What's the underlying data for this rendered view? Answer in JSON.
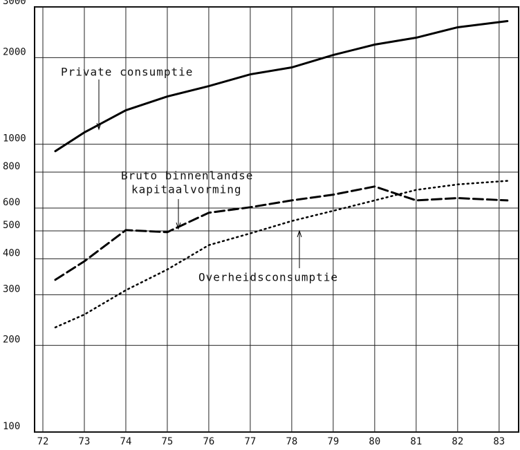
{
  "chart_data": {
    "type": "line",
    "x": [
      72.3,
      73,
      74,
      75,
      76,
      77,
      78,
      79,
      80,
      81,
      82,
      83.2
    ],
    "xlim": [
      71.8,
      83.47
    ],
    "xticks": [
      72,
      73,
      74,
      75,
      76,
      77,
      78,
      79,
      80,
      81,
      82,
      83
    ],
    "ylim": [
      100,
      3000
    ],
    "log_y": true,
    "yticks": [
      100,
      200,
      300,
      400,
      500,
      600,
      800,
      1000,
      2000,
      3000
    ],
    "grid": true,
    "series": [
      {
        "name": "Private consumptie",
        "color": "#000000",
        "style": "solid",
        "values": [
          946,
          1099,
          1312,
          1465,
          1592,
          1749,
          1849,
          2042,
          2219,
          2345,
          2549,
          2679
        ]
      },
      {
        "name": "Bruto binnenlandse kapitaalvorming",
        "color": "#000000",
        "style": "dashed",
        "values": [
          338,
          392,
          503,
          495,
          578,
          604,
          638,
          668,
          713,
          638,
          650,
          638
        ]
      },
      {
        "name": "Overheidsconsumptie",
        "color": "#000000",
        "style": "dotted",
        "values": [
          231,
          256,
          311,
          367,
          446,
          490,
          541,
          587,
          638,
          694,
          725,
          746
        ]
      }
    ],
    "annotations": [
      "Private consumptie",
      "Bruto binnenlandse",
      "kapitaalvorming",
      "Overheidsconsumptie"
    ]
  }
}
